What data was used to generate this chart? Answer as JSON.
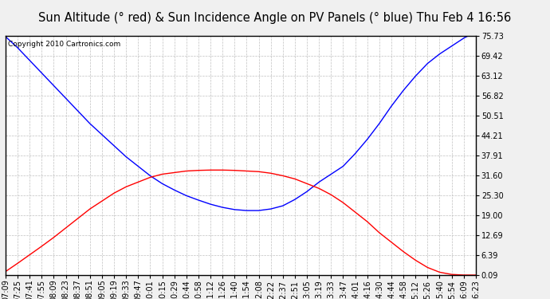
{
  "title": "Sun Altitude (° red) & Sun Incidence Angle on PV Panels (° blue) Thu Feb 4 16:56",
  "copyright": "Copyright 2010 Cartronics.com",
  "yticks": [
    0.09,
    6.39,
    12.69,
    19.0,
    25.3,
    31.6,
    37.91,
    44.21,
    50.51,
    56.82,
    63.12,
    69.42,
    75.73
  ],
  "ymin": 0.09,
  "ymax": 75.73,
  "x_labels": [
    "07:09",
    "07:25",
    "07:41",
    "07:55",
    "08:09",
    "08:23",
    "08:37",
    "08:51",
    "09:05",
    "09:19",
    "09:33",
    "09:47",
    "10:01",
    "10:15",
    "10:29",
    "10:44",
    "10:58",
    "11:12",
    "11:26",
    "11:40",
    "11:54",
    "12:08",
    "12:22",
    "12:37",
    "12:51",
    "13:05",
    "13:19",
    "13:33",
    "13:47",
    "14:01",
    "14:16",
    "14:30",
    "14:44",
    "14:58",
    "15:12",
    "15:26",
    "15:40",
    "15:54",
    "16:09",
    "16:23"
  ],
  "blue_data": [
    75.5,
    72.0,
    68.0,
    64.0,
    60.0,
    56.0,
    52.0,
    48.0,
    44.5,
    41.0,
    37.5,
    34.5,
    31.5,
    29.0,
    27.0,
    25.2,
    23.8,
    22.5,
    21.5,
    20.8,
    20.5,
    20.5,
    21.0,
    22.0,
    24.0,
    26.5,
    29.5,
    32.0,
    34.5,
    38.5,
    43.0,
    48.0,
    53.5,
    58.5,
    63.0,
    67.0,
    70.0,
    72.5,
    75.0,
    77.0
  ],
  "red_data": [
    1.2,
    3.8,
    6.5,
    9.2,
    12.0,
    15.0,
    18.0,
    21.0,
    23.5,
    26.0,
    28.0,
    29.5,
    31.0,
    32.0,
    32.5,
    33.0,
    33.2,
    33.3,
    33.3,
    33.2,
    33.0,
    32.8,
    32.3,
    31.5,
    30.5,
    29.0,
    27.5,
    25.5,
    23.0,
    20.0,
    17.0,
    13.5,
    10.5,
    7.5,
    4.8,
    2.5,
    1.0,
    0.3,
    0.1,
    0.09
  ],
  "outer_bg": "#f0f0f0",
  "plot_bg": "#ffffff",
  "grid_color": "#c0c0c0",
  "blue_color": "#0000ff",
  "red_color": "#ff0000",
  "title_fontsize": 10.5,
  "tick_fontsize": 7,
  "copyright_fontsize": 6.5,
  "title_bg": "#ffffff",
  "border_color": "#000000"
}
